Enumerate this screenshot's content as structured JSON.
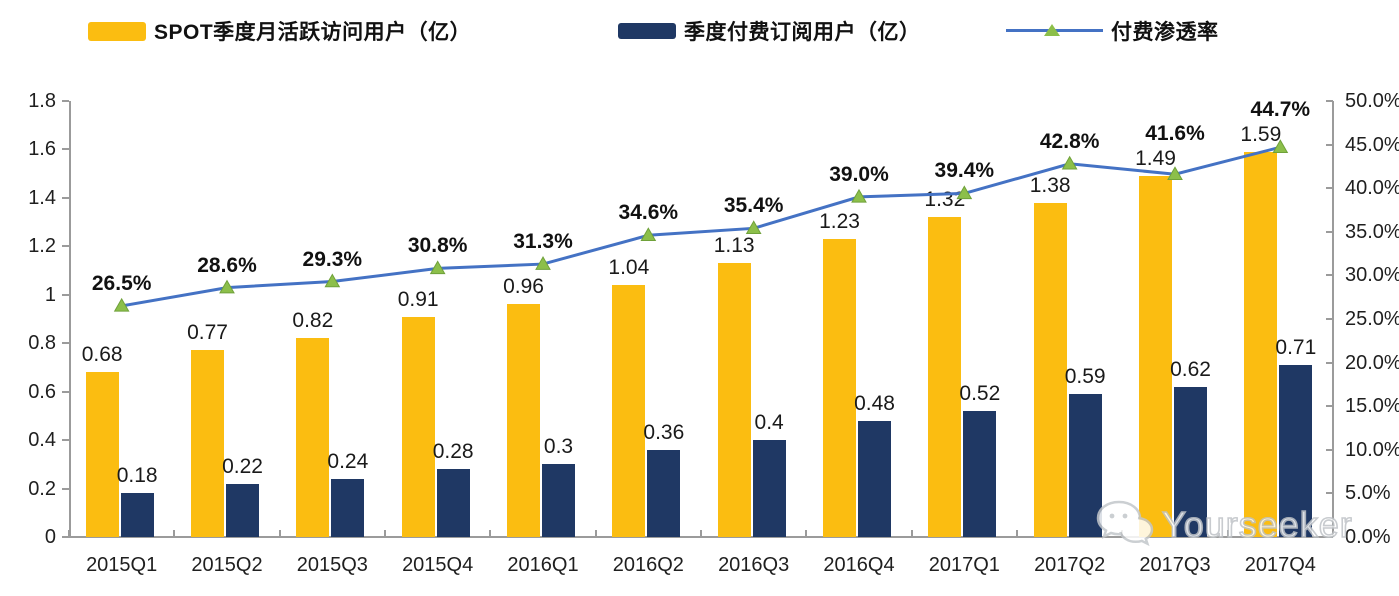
{
  "legend": {
    "mau": {
      "label": "SPOT季度月活跃访问用户（亿）",
      "color": "#FBBD11"
    },
    "subs": {
      "label": "季度付费订阅用户（亿）",
      "color": "#1F3864"
    },
    "rate": {
      "label": "付费渗透率",
      "line_color": "#4472C4",
      "marker_color": "#8CBF4A"
    }
  },
  "watermark": {
    "text": "Yourseeker",
    "icon": "wechat-icon"
  },
  "colors": {
    "bar_mau": "#FBBD11",
    "bar_subs": "#1F3864",
    "line": "#4472C4",
    "marker": "#8CBF4A",
    "marker_edge": "#6FA13A",
    "axis": "#9B9B9B",
    "text": "#1A1A1A"
  },
  "chart_data": {
    "type": "bar",
    "subtype": "grouped bars + line on secondary axis",
    "categories": [
      "2015Q1",
      "2015Q2",
      "2015Q3",
      "2015Q4",
      "2016Q1",
      "2016Q2",
      "2016Q3",
      "2016Q4",
      "2017Q1",
      "2017Q2",
      "2017Q3",
      "2017Q4"
    ],
    "series": [
      {
        "name": "SPOT季度月活跃访问用户（亿）",
        "type": "bar",
        "axis": "left",
        "values": [
          0.68,
          0.77,
          0.82,
          0.91,
          0.96,
          1.04,
          1.13,
          1.23,
          1.32,
          1.38,
          1.49,
          1.59
        ],
        "labels": [
          "0.68",
          "0.77",
          "0.82",
          "0.91",
          "0.96",
          "1.04",
          "1.13",
          "1.23",
          "1.32",
          "1.38",
          "1.49",
          "1.59"
        ]
      },
      {
        "name": "季度付费订阅用户（亿）",
        "type": "bar",
        "axis": "left",
        "values": [
          0.18,
          0.22,
          0.24,
          0.28,
          0.3,
          0.36,
          0.4,
          0.48,
          0.52,
          0.59,
          0.62,
          0.71
        ],
        "labels": [
          "0.18",
          "0.22",
          "0.24",
          "0.28",
          "0.3",
          "0.36",
          "0.4",
          "0.48",
          "0.52",
          "0.59",
          "0.62",
          "0.71"
        ]
      },
      {
        "name": "付费渗透率",
        "type": "line",
        "axis": "right",
        "values": [
          26.5,
          28.6,
          29.3,
          30.8,
          31.3,
          34.6,
          35.4,
          39.0,
          39.4,
          42.8,
          41.6,
          44.7
        ],
        "labels": [
          "26.5%",
          "28.6%",
          "29.3%",
          "30.8%",
          "31.3%",
          "34.6%",
          "35.4%",
          "39.0%",
          "39.4%",
          "42.8%",
          "41.6%",
          "44.7%"
        ]
      }
    ],
    "left_axis": {
      "min": 0,
      "max": 1.8,
      "step": 0.2,
      "ticks": [
        "0",
        "0.2",
        "0.4",
        "0.6",
        "0.8",
        "1",
        "1.2",
        "1.4",
        "1.6",
        "1.8"
      ]
    },
    "right_axis": {
      "min": 0,
      "max": 50,
      "step": 5,
      "ticks": [
        "0.0%",
        "5.0%",
        "10.0%",
        "15.0%",
        "20.0%",
        "25.0%",
        "30.0%",
        "35.0%",
        "40.0%",
        "45.0%",
        "50.0%"
      ]
    },
    "grid": false,
    "legend_position": "top"
  }
}
